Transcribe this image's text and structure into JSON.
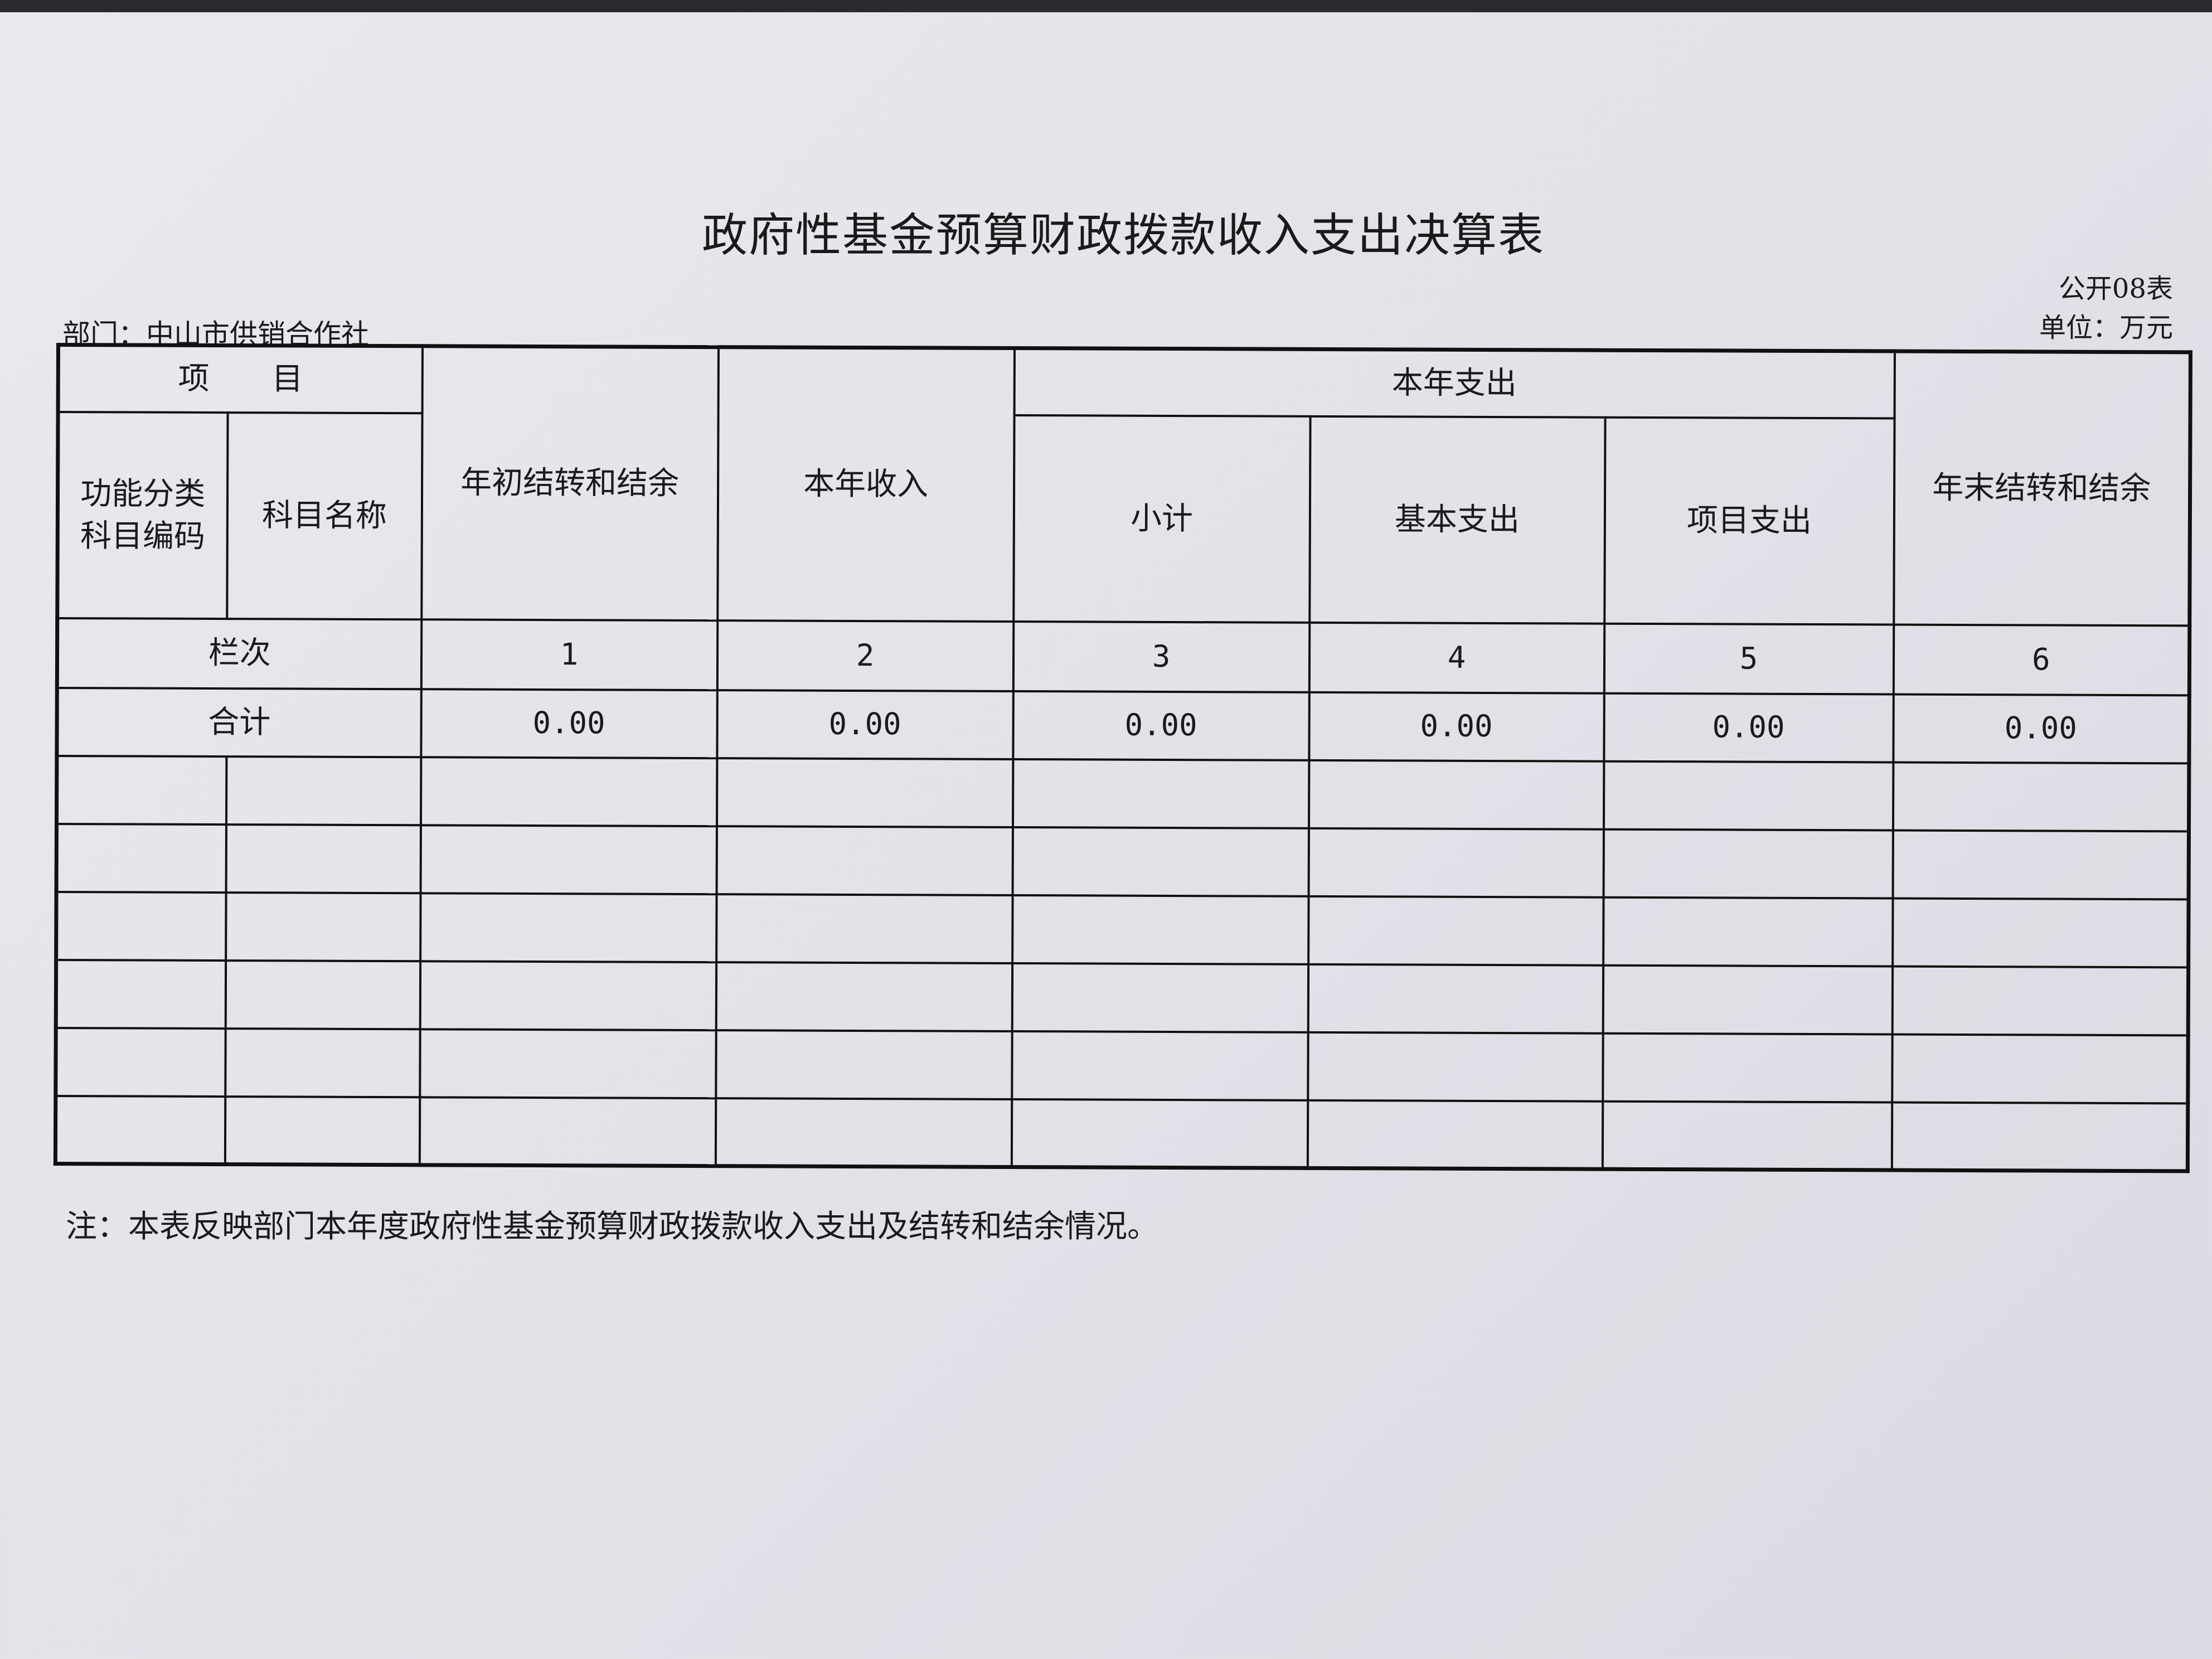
{
  "title": "政府性基金预算财政拨款收入支出决算表",
  "table_code": "公开08表",
  "department": "部门：中山市供销合作社",
  "unit": "单位：万元",
  "headers": {
    "item": "项　　目",
    "func_code": "功能分类科目编码",
    "subject_name": "科目名称",
    "opening_balance": "年初结转和结余",
    "current_income": "本年收入",
    "current_expense": "本年支出",
    "subtotal": "小计",
    "basic_expense": "基本支出",
    "project_expense": "项目支出",
    "closing_balance": "年末结转和结余"
  },
  "column_numbers": {
    "label": "栏次",
    "values": [
      "1",
      "2",
      "3",
      "4",
      "5",
      "6"
    ]
  },
  "total_row": {
    "label": "合计",
    "values": [
      "0.00",
      "0.00",
      "0.00",
      "0.00",
      "0.00",
      "0.00"
    ]
  },
  "note": "注：本表反映部门本年度政府性基金预算财政拨款收入支出及结转和结余情况。"
}
